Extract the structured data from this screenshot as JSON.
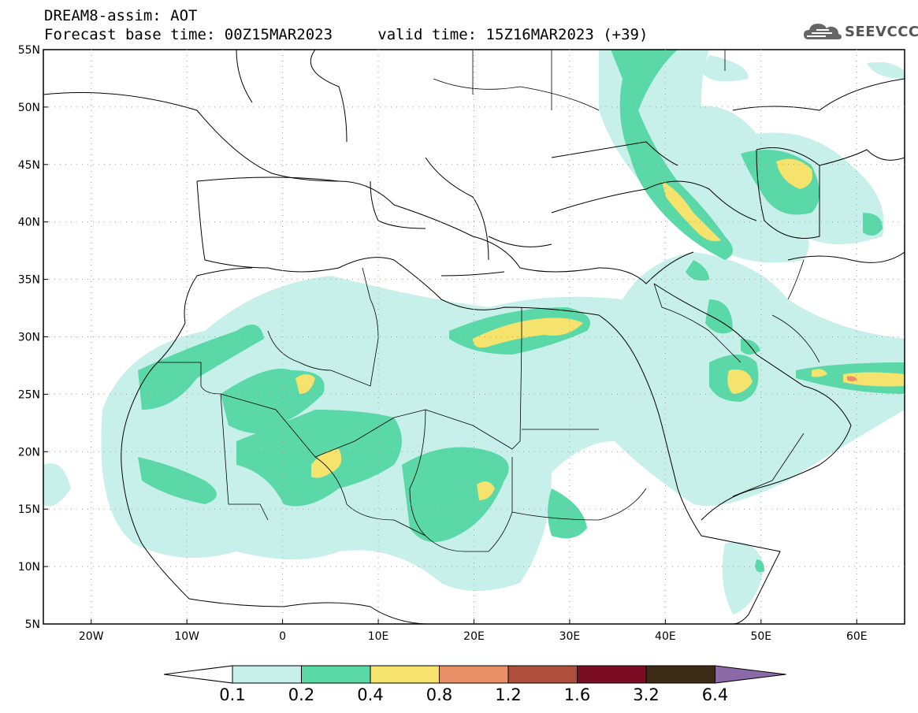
{
  "header": {
    "title": "DREAM8-assim: AOT",
    "base_label": "Forecast base time: 00Z15MAR2023",
    "valid_label": "valid time: 15Z16MAR2023 (+39)"
  },
  "logo": {
    "text": "SEEVCCC",
    "icon": "cloud-icon"
  },
  "map": {
    "lat_ticks": [
      "55N",
      "50N",
      "45N",
      "40N",
      "35N",
      "30N",
      "25N",
      "20N",
      "15N",
      "10N",
      "5N"
    ],
    "lon_ticks": [
      "20W",
      "10W",
      "0",
      "10E",
      "20E",
      "30E",
      "40E",
      "50E",
      "60E"
    ],
    "lon_range": [
      -25,
      65
    ],
    "lat_range": [
      5,
      55
    ],
    "grid": true
  },
  "colorbar": {
    "levels": [
      "0.1",
      "0.2",
      "0.4",
      "0.8",
      "1.2",
      "1.6",
      "3.2",
      "6.4"
    ],
    "colors": [
      "#c8f0ea",
      "#5ad8a8",
      "#f5e36e",
      "#e98f68",
      "#ad4f3c",
      "#7a0d24",
      "#3b2a14",
      "#8c6aa8"
    ]
  }
}
